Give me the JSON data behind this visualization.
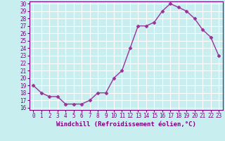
{
  "x": [
    0,
    1,
    2,
    3,
    4,
    5,
    6,
    7,
    8,
    9,
    10,
    11,
    12,
    13,
    14,
    15,
    16,
    17,
    18,
    19,
    20,
    21,
    22,
    23
  ],
  "y": [
    19,
    18,
    17.5,
    17.5,
    16.5,
    16.5,
    16.5,
    17,
    18,
    18,
    20,
    21,
    24,
    27,
    27,
    27.5,
    29,
    30,
    29.5,
    29,
    28,
    26.5,
    25.5,
    23
  ],
  "line_color": "#993399",
  "marker": "D",
  "marker_size": 2.5,
  "background_color": "#c8eef0",
  "grid_color": "#ffffff",
  "xlabel": "Windchill (Refroidissement éolien,°C)",
  "ylim": [
    16,
    30
  ],
  "xlim": [
    -0.5,
    23.5
  ],
  "yticks": [
    16,
    17,
    18,
    19,
    20,
    21,
    22,
    23,
    24,
    25,
    26,
    27,
    28,
    29,
    30
  ],
  "xticks": [
    0,
    1,
    2,
    3,
    4,
    5,
    6,
    7,
    8,
    9,
    10,
    11,
    12,
    13,
    14,
    15,
    16,
    17,
    18,
    19,
    20,
    21,
    22,
    23
  ],
  "tick_label_color": "#800080",
  "tick_label_fontsize": 5.5,
  "xlabel_fontsize": 6.5,
  "line_width": 1.0,
  "spine_color": "#800080"
}
